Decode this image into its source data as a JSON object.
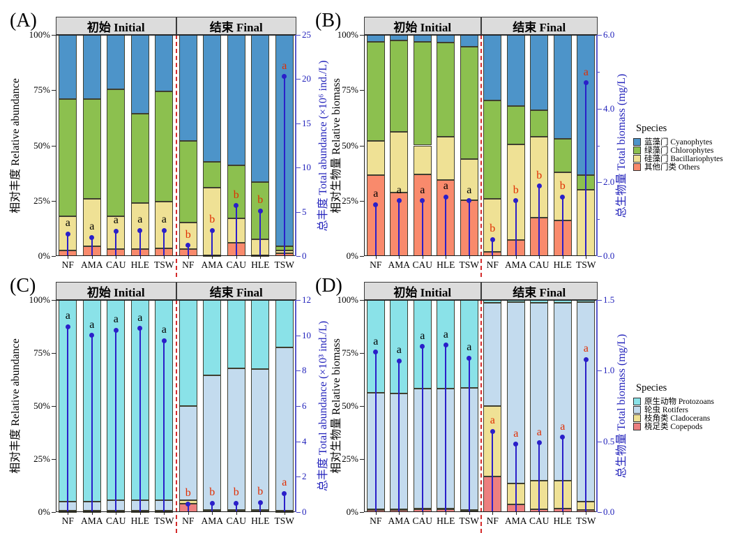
{
  "figure_background": "#ffffff",
  "divider_color": "#d42a2a",
  "header_bg": "#dcdcdc",
  "lollipop_color": "#2a1fc9",
  "axis_blue": "#2222bb",
  "legends": [
    {
      "title": "Species",
      "items": [
        {
          "label": "蓝藻门 Cyanophytes",
          "color": "#4d94c9"
        },
        {
          "label": "绿藻门 Chlorophytes",
          "color": "#8cc04f"
        },
        {
          "label": "硅藻门 Bacillariophytes",
          "color": "#efe195"
        },
        {
          "label": "其他门类 Others",
          "color": "#f98a6c"
        }
      ]
    },
    {
      "title": "Species",
      "items": [
        {
          "label": "原生动物 Protozoans",
          "color": "#8ae2e8"
        },
        {
          "label": "轮虫 Rotifers",
          "color": "#c3dbee"
        },
        {
          "label": "枝角类 Cladocerans",
          "color": "#efe195"
        },
        {
          "label": "桡足类 Copepods",
          "color": "#ec7f7f"
        }
      ]
    }
  ],
  "chart_data": [
    {
      "id": "A",
      "panel_label": "(A)",
      "type": "bar",
      "subtype": "stacked-percent-with-lollipop",
      "facets": [
        "初始 Initial",
        "结束 Final"
      ],
      "categories": [
        "NF",
        "AMA",
        "CAU",
        "HLE",
        "TSW"
      ],
      "left_axis": {
        "title": "相对丰度 Relative abundance",
        "ticks": [
          "0%",
          "25%",
          "50%",
          "75%",
          "100%"
        ],
        "range": [
          0,
          100
        ],
        "color": "#000000"
      },
      "right_axis": {
        "title": "总丰度 Total abundance (×10⁶ ind./L)",
        "ticks": [
          "0",
          "5",
          "10",
          "15",
          "20",
          "25"
        ],
        "minor_ticks": [],
        "range": [
          0,
          25
        ],
        "color": "#2222bb"
      },
      "stack_series": [
        {
          "name": "其他门类 Others",
          "color": "#f98a6c",
          "initial": [
            2.5,
            4.5,
            3,
            3,
            3.5
          ],
          "final": [
            3,
            0.3,
            6,
            0.3,
            1.2
          ]
        },
        {
          "name": "硅藻门 Bacillariophytes",
          "color": "#efe195",
          "initial": [
            15.5,
            21.5,
            15,
            21,
            21
          ],
          "final": [
            12,
            30.7,
            11,
            7.2,
            1.3
          ]
        },
        {
          "name": "绿藻门 Chlorophytes",
          "color": "#8cc04f",
          "initial": [
            53,
            45,
            57.5,
            40.5,
            50
          ],
          "final": [
            37,
            11.5,
            24,
            26,
            1.8
          ]
        },
        {
          "name": "蓝藻门 Cyanophytes",
          "color": "#4d94c9",
          "initial": [
            29,
            29,
            24.5,
            35.5,
            25.5
          ],
          "final": [
            48,
            57.5,
            59,
            66.5,
            95.7
          ]
        }
      ],
      "lollipop": {
        "name": "总丰度 Total abundance",
        "initial": [
          2.5,
          2.1,
          2.8,
          2.9,
          2.9
        ],
        "final": [
          1.2,
          2.9,
          5.7,
          5.1,
          20.3
        ],
        "letters_initial": [
          "a",
          "a",
          "a",
          "a",
          "a"
        ],
        "letters_final": [
          "b",
          "b",
          "b",
          "b",
          "a"
        ],
        "letter_color_initial": "#000000",
        "letter_color_final": "#e02d00"
      }
    },
    {
      "id": "B",
      "panel_label": "(B)",
      "type": "bar",
      "subtype": "stacked-percent-with-lollipop",
      "facets": [
        "初始 Initial",
        "结束 Final"
      ],
      "categories": [
        "NF",
        "AMA",
        "CAU",
        "HLE",
        "TSW"
      ],
      "left_axis": {
        "title": "相对生物量 Relative biomass",
        "ticks": [
          "0%",
          "25%",
          "50%",
          "75%",
          "100%"
        ],
        "range": [
          0,
          100
        ],
        "color": "#000000"
      },
      "right_axis": {
        "title": "总生物量 Total biomass (mg/L)",
        "ticks": [
          "0.0",
          "2.0",
          "4.0",
          "6.0"
        ],
        "minor_ticks": [
          1,
          3,
          5
        ],
        "range": [
          0,
          6
        ],
        "color": "#2222bb"
      },
      "stack_series": [
        {
          "name": "其他门类 Others",
          "color": "#f98a6c",
          "initial": [
            36.6,
            28.7,
            37,
            34.4,
            25.3
          ],
          "final": [
            2,
            7.4,
            17.2,
            16,
            0
          ]
        },
        {
          "name": "硅藻门 Bacillariophytes",
          "color": "#efe195",
          "initial": [
            15.4,
            27.3,
            13,
            19.6,
            18.7
          ],
          "final": [
            24,
            43.1,
            36.8,
            22,
            30
          ]
        },
        {
          "name": "绿藻门 Chlorophytes",
          "color": "#8cc04f",
          "initial": [
            45,
            41.5,
            47,
            42.5,
            50.5
          ],
          "final": [
            44.5,
            17.2,
            12,
            15,
            6.5
          ]
        },
        {
          "name": "蓝藻门 Cyanophytes",
          "color": "#4d94c9",
          "initial": [
            3,
            2.5,
            3,
            3.5,
            5.5
          ],
          "final": [
            29.5,
            32.3,
            34,
            47,
            63.5
          ]
        }
      ],
      "lollipop": {
        "name": "总生物量 Total biomass",
        "initial": [
          1.4,
          1.5,
          1.5,
          1.6,
          1.5
        ],
        "final": [
          0.45,
          1.5,
          1.9,
          1.6,
          4.7
        ],
        "letters_initial": [
          "a",
          "a",
          "a",
          "a",
          "a"
        ],
        "letters_final": [
          "b",
          "b",
          "b",
          "b",
          "a"
        ],
        "letter_color_initial": "#000000",
        "letter_color_final": "#e02d00"
      }
    },
    {
      "id": "C",
      "panel_label": "(C)",
      "type": "bar",
      "subtype": "stacked-percent-with-lollipop",
      "facets": [
        "初始 Initial",
        "结束 Final"
      ],
      "categories": [
        "NF",
        "AMA",
        "CAU",
        "HLE",
        "TSW"
      ],
      "left_axis": {
        "title": "相对丰度 Relative abundance",
        "ticks": [
          "0%",
          "25%",
          "50%",
          "75%",
          "100%"
        ],
        "range": [
          0,
          100
        ],
        "color": "#000000"
      },
      "right_axis": {
        "title": "总丰度 Total abundance (×10³ ind./L)",
        "ticks": [
          "0",
          "2",
          "4",
          "6",
          "8",
          "10",
          "12"
        ],
        "minor_ticks": [],
        "range": [
          0,
          12
        ],
        "color": "#2222bb"
      },
      "stack_series": [
        {
          "name": "桡足类 Copepods",
          "color": "#ec7f7f",
          "initial": [
            0.3,
            0.3,
            0.3,
            0.3,
            0.3
          ],
          "final": [
            3.8,
            0.6,
            0.5,
            0.5,
            0.3
          ]
        },
        {
          "name": "枝角类 Cladocerans",
          "color": "#efe195",
          "initial": [
            0.2,
            0.2,
            0.2,
            0.2,
            0.2
          ],
          "final": [
            1.9,
            0.5,
            0.5,
            0.5,
            0.3
          ]
        },
        {
          "name": "轮虫 Rotifers",
          "color": "#c3dbee",
          "initial": [
            4.5,
            4.5,
            5,
            5,
            5
          ],
          "final": [
            44.2,
            63.3,
            66.7,
            66.3,
            77.1
          ]
        },
        {
          "name": "原生动物 Protozoans",
          "color": "#8ae2e8",
          "initial": [
            95,
            95,
            94.5,
            94.5,
            94.5
          ],
          "final": [
            50.1,
            35.6,
            32.3,
            32.7,
            22.3
          ]
        }
      ],
      "lollipop": {
        "name": "总丰度 Total abundance",
        "initial": [
          10.5,
          10.0,
          10.3,
          10.4,
          9.7
        ],
        "final": [
          0.46,
          0.51,
          0.51,
          0.55,
          1.05
        ],
        "letters_initial": [
          "a",
          "a",
          "a",
          "a",
          "a"
        ],
        "letters_final": [
          "b",
          "b",
          "b",
          "b",
          "a"
        ],
        "letter_color_initial": "#000000",
        "letter_color_final": "#e02d00"
      }
    },
    {
      "id": "D",
      "panel_label": "(D)",
      "type": "bar",
      "subtype": "stacked-percent-with-lollipop",
      "facets": [
        "初始 Initial",
        "结束 Final"
      ],
      "categories": [
        "NF",
        "AMA",
        "CAU",
        "HLE",
        "TSW"
      ],
      "left_axis": {
        "title": "相对生物量 Relative biomass",
        "ticks": [
          "0%",
          "25%",
          "50%",
          "75%",
          "100%"
        ],
        "range": [
          0,
          100
        ],
        "color": "#000000"
      },
      "right_axis": {
        "title": "总生物量 Total biomass (mg/L)",
        "ticks": [
          "0.0",
          "0.5",
          "1.0",
          "1.5"
        ],
        "minor_ticks": [],
        "range": [
          0,
          1.5
        ],
        "color": "#2222bb"
      },
      "stack_series": [
        {
          "name": "桡足类 Copepods",
          "color": "#ec7f7f",
          "initial": [
            1,
            1,
            1.3,
            1.5,
            0.8
          ],
          "final": [
            16.7,
            3.5,
            1.3,
            1.6,
            1
          ]
        },
        {
          "name": "枝角类 Cladocerans",
          "color": "#efe195",
          "initial": [
            0.2,
            0.2,
            0.2,
            0.2,
            0.2
          ],
          "final": [
            33.4,
            9.9,
            13.5,
            13.2,
            3.8
          ]
        },
        {
          "name": "轮虫 Rotifers",
          "color": "#c3dbee",
          "initial": [
            54.9,
            54.7,
            56.8,
            56.6,
            57.5
          ],
          "final": [
            48.5,
            85.6,
            84,
            84,
            94.2
          ]
        },
        {
          "name": "原生动物 Protozoans",
          "color": "#8ae2e8",
          "initial": [
            43.9,
            44.1,
            41.7,
            41.7,
            41.5
          ],
          "final": [
            1.4,
            1.0,
            1.2,
            1.2,
            1.0
          ]
        }
      ],
      "lollipop": {
        "name": "总生物量 Total biomass",
        "initial": [
          1.13,
          1.07,
          1.17,
          1.18,
          1.09
        ],
        "final": [
          0.57,
          0.48,
          0.49,
          0.53,
          1.08
        ],
        "letters_initial": [
          "a",
          "a",
          "a",
          "a",
          "a"
        ],
        "letters_final": [
          "a",
          "a",
          "a",
          "a",
          "a"
        ],
        "letter_color_initial": "#000000",
        "letter_color_final": "#e02d00"
      }
    }
  ]
}
